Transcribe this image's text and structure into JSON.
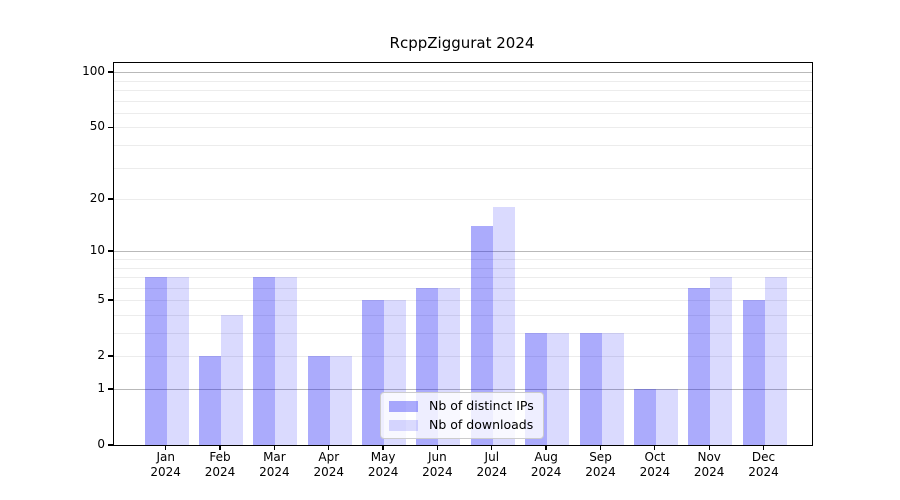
{
  "title": "RcppZiggurat 2024",
  "chart_data": {
    "type": "bar",
    "title": "RcppZiggurat 2024",
    "categories": [
      "Jan",
      "Feb",
      "Mar",
      "Apr",
      "May",
      "Jun",
      "Jul",
      "Aug",
      "Sep",
      "Oct",
      "Nov",
      "Dec"
    ],
    "year": "2024",
    "series": [
      {
        "name": "Nb of distinct IPs",
        "color": "rgba(10,10,245,0.34)",
        "color_hex": "#a9a9f7",
        "values": [
          7,
          2,
          7,
          2,
          5,
          6,
          14,
          3,
          3,
          1,
          6,
          5
        ]
      },
      {
        "name": "Nb of downloads",
        "color": "rgba(10,10,245,0.15)",
        "color_hex": "#d9d9fb",
        "values": [
          7,
          4,
          7,
          2,
          5,
          6,
          18,
          3,
          3,
          1,
          7,
          7
        ]
      }
    ],
    "yscale": "log1p",
    "ylim": [
      0,
      112
    ],
    "yticks": [
      0,
      1,
      2,
      5,
      10,
      20,
      50,
      100
    ],
    "grid": {
      "major": [
        1,
        10,
        100
      ],
      "minor": [
        2,
        3,
        4,
        5,
        6,
        7,
        8,
        9,
        20,
        30,
        40,
        50,
        60,
        70,
        80,
        90
      ],
      "major_color": "#b9b9b9",
      "minor_color": "#ececec"
    },
    "legend_position": "lower center",
    "xlabel": "",
    "ylabel": ""
  },
  "colors": {
    "background": "#ffffff",
    "axis": "#000000",
    "text": "#000000"
  }
}
